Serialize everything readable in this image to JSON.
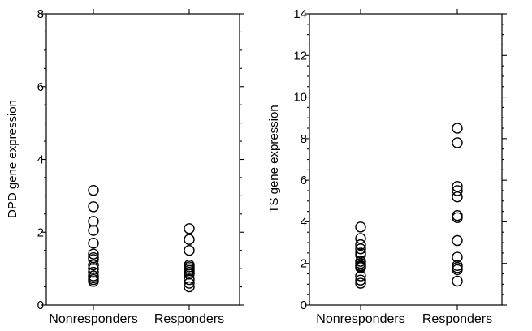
{
  "chart_data": [
    {
      "type": "scatter",
      "title": "",
      "xlabel": "",
      "ylabel": "DPD gene expression",
      "ylim": [
        0,
        8
      ],
      "yticks": [
        0,
        2,
        4,
        6,
        8
      ],
      "categories": [
        "Nonresponders",
        "Responders"
      ],
      "grid": false,
      "marker": "open-circle",
      "series": [
        {
          "category": "Nonresponders",
          "values": [
            3.15,
            2.7,
            2.3,
            2.05,
            1.7,
            1.4,
            1.3,
            1.25,
            1.1,
            1.0,
            0.9,
            0.8,
            0.75,
            0.7,
            0.65
          ]
        },
        {
          "category": "Responders",
          "values": [
            2.1,
            1.8,
            1.5,
            1.1,
            1.05,
            1.0,
            0.95,
            0.9,
            0.85,
            0.7,
            0.6,
            0.5
          ]
        }
      ]
    },
    {
      "type": "scatter",
      "title": "",
      "xlabel": "",
      "ylabel": "TS gene expression",
      "ylim": [
        0,
        14
      ],
      "yticks": [
        0,
        2,
        4,
        6,
        8,
        10,
        12,
        14
      ],
      "categories": [
        "Nonresponders",
        "Responders"
      ],
      "grid": false,
      "marker": "open-circle",
      "series": [
        {
          "category": "Nonresponders",
          "values": [
            3.75,
            3.2,
            2.9,
            2.7,
            2.5,
            2.4,
            2.1,
            2.0,
            1.9,
            1.85,
            1.8,
            1.4,
            1.2,
            1.05
          ]
        },
        {
          "category": "Responders",
          "values": [
            8.5,
            7.8,
            5.7,
            5.5,
            5.2,
            4.3,
            4.2,
            3.1,
            2.3,
            1.9,
            1.8,
            1.7,
            1.15
          ]
        }
      ]
    }
  ]
}
